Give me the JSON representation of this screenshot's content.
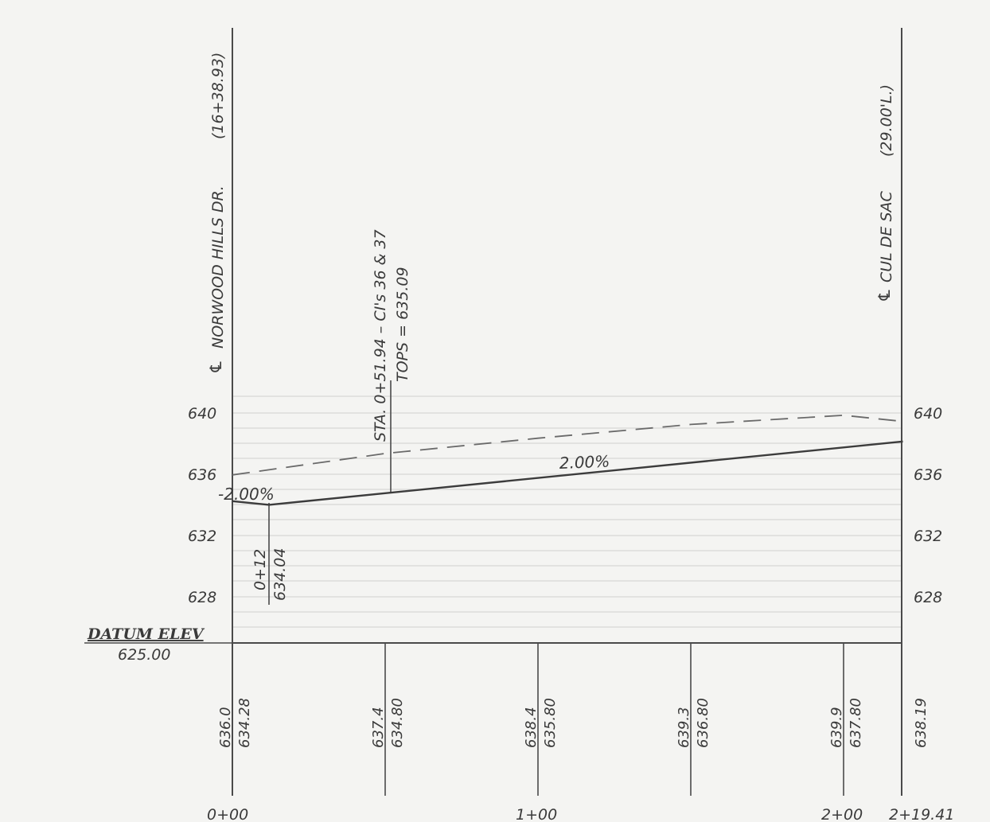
{
  "left_callout": {
    "text": "NORWOOD HILLS DR.",
    "station": "(16+38.93)"
  },
  "right_callout": {
    "text": "CUL DE SAC",
    "offset": "(29.00'L.)"
  },
  "structure": {
    "line1": "STA. 0+51.94 – CI's 36 & 37",
    "line2": "TOPS = 635.09"
  },
  "grades": {
    "left": "-2.00%",
    "right": "2.00%"
  },
  "low_point": {
    "station": "0+12",
    "elevation": "634.04"
  },
  "datum": {
    "label": "DATUM ELEV",
    "value": "625.00"
  },
  "elev_labels_left": [
    "640",
    "636",
    "632",
    "628"
  ],
  "elev_labels_right": [
    "640",
    "636",
    "632",
    "628"
  ],
  "table": [
    {
      "ground": "636.0",
      "grade": "634.28"
    },
    {
      "ground": "637.4",
      "grade": "634.80"
    },
    {
      "ground": "638.4",
      "grade": "635.80"
    },
    {
      "ground": "639.3",
      "grade": "636.80"
    },
    {
      "ground": "639.9",
      "grade": "637.80"
    },
    {
      "ground": "",
      "grade": "638.19"
    }
  ],
  "stations": [
    "0+00",
    "1+00",
    "2+00",
    "2+19.41"
  ],
  "chart_data": {
    "type": "line",
    "xlabel": "",
    "ylabel": "",
    "ylim": [
      625,
      642
    ],
    "xlim": [
      0,
      219.41
    ],
    "series": [
      {
        "x": [
          0,
          12,
          219.41
        ],
        "values": [
          634.28,
          634.04,
          638.19
        ]
      },
      {
        "x": [
          0,
          50,
          100,
          150,
          200,
          219.41
        ],
        "values": [
          636.0,
          637.4,
          638.4,
          639.3,
          639.9,
          639.5
        ]
      }
    ]
  }
}
